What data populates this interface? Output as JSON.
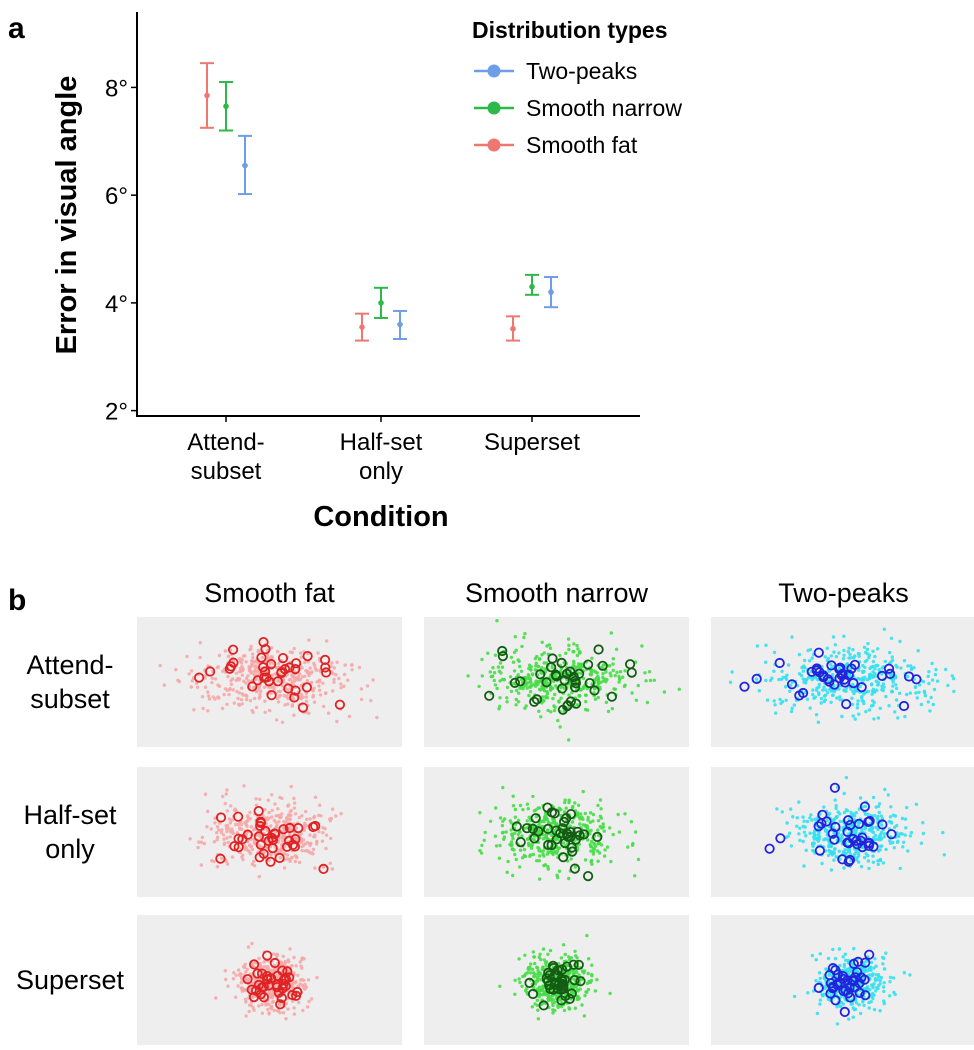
{
  "panel_a_letter": "a",
  "panel_b_letter": "b",
  "chart_data": [
    {
      "type": "scatter",
      "categories": [
        "Attend-\nsubset",
        "Half-set\nonly",
        "Superset"
      ],
      "xlabel": "Condition",
      "ylabel": "Error in visual angle",
      "yticks": [
        "2°",
        "4°",
        "6°",
        "8°"
      ],
      "ylim": [
        1.9,
        9.4
      ],
      "legend_title": "Distribution types",
      "legend_position": "top-right",
      "series": [
        {
          "name": "Two-peaks",
          "color": "#6f9ee8",
          "values": [
            6.55,
            3.6,
            4.2
          ],
          "lower": [
            6.02,
            3.33,
            3.92
          ],
          "upper": [
            7.1,
            3.85,
            4.48
          ]
        },
        {
          "name": "Smooth narrow",
          "color": "#2db84a",
          "values": [
            7.65,
            4.0,
            4.3
          ],
          "lower": [
            7.2,
            3.72,
            4.15
          ],
          "upper": [
            8.1,
            4.28,
            4.52
          ]
        },
        {
          "name": "Smooth fat",
          "color": "#ee7771",
          "values": [
            7.85,
            3.55,
            3.52
          ],
          "lower": [
            7.25,
            3.3,
            3.3
          ],
          "upper": [
            8.45,
            3.8,
            3.75
          ]
        }
      ],
      "series_draw_order": [
        "Smooth fat",
        "Smooth narrow",
        "Two-peaks"
      ]
    },
    {
      "type": "scatter",
      "columns": [
        "Smooth fat",
        "Smooth narrow",
        "Two-peaks"
      ],
      "rows": [
        "Attend-\nsubset",
        "Half-set\nonly",
        "Superset"
      ],
      "colors": {
        "Smooth fat": {
          "light": "#f6a7a7",
          "dark": "#e02222"
        },
        "Smooth narrow": {
          "light": "#46dd46",
          "dark": "#145c14"
        },
        "Two-peaks": {
          "light": "#33e0ee",
          "dark": "#2323dd"
        }
      },
      "background": "#eeeeee"
    }
  ]
}
